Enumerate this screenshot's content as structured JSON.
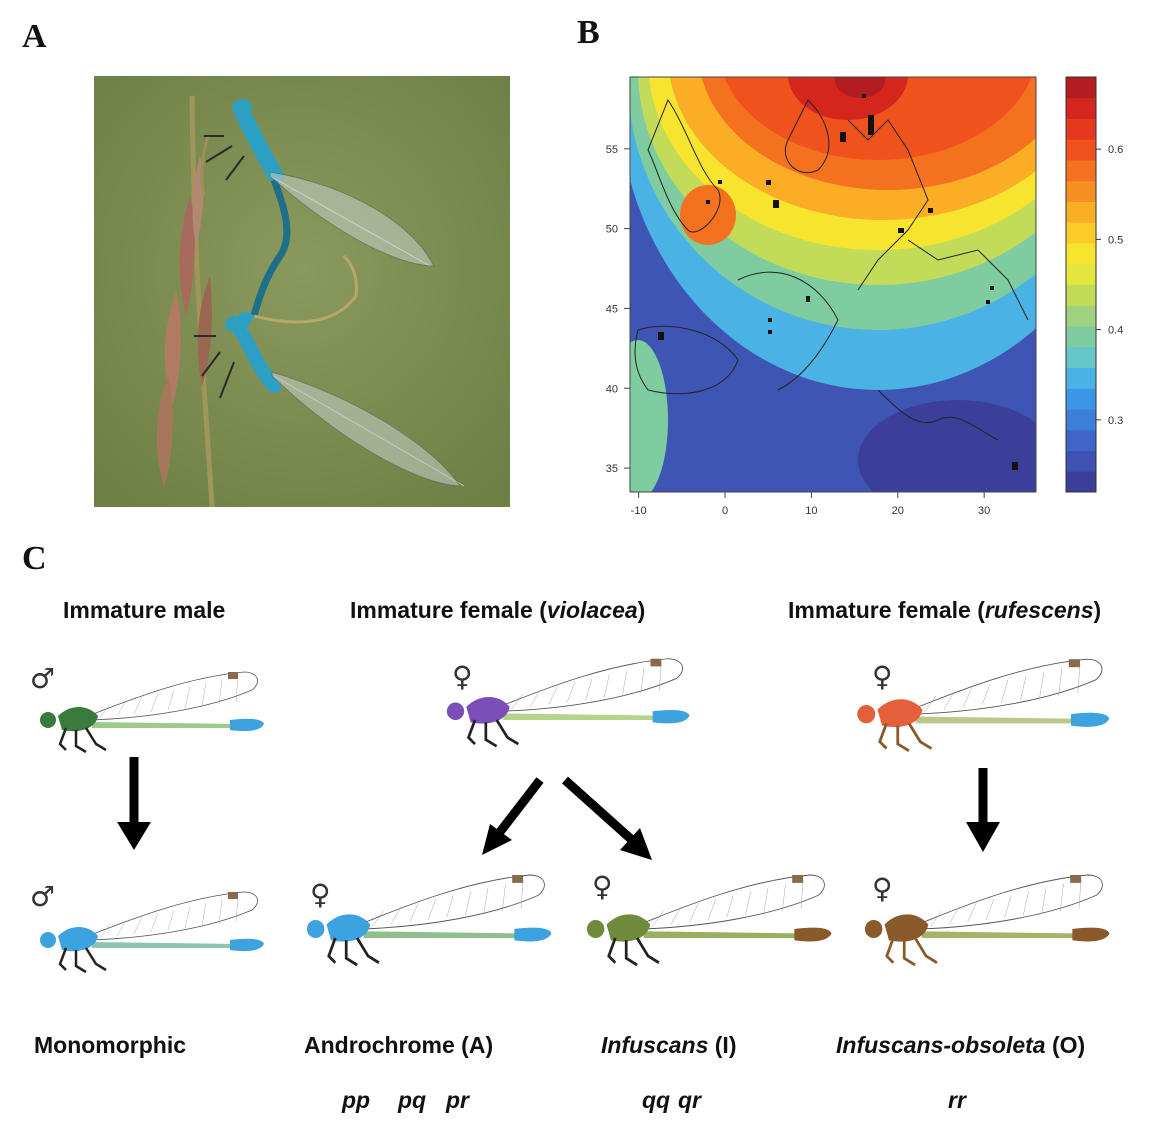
{
  "panels": {
    "a": "A",
    "b": "B",
    "c": "C"
  },
  "chart_data": {
    "type": "heatmap",
    "title": "",
    "xlabel": "",
    "ylabel": "",
    "xlim": [
      -11,
      36
    ],
    "ylim": [
      33.5,
      59.5
    ],
    "x_ticks": [
      -10,
      0,
      10,
      20,
      30
    ],
    "y_ticks": [
      35,
      40,
      45,
      50,
      55
    ],
    "colorbar": {
      "ticks": [
        "0.3",
        "0.4",
        "0.5",
        "0.6"
      ],
      "range": [
        0.22,
        0.68
      ],
      "colors": [
        "#3b3f9a",
        "#3f52b3",
        "#3f66c8",
        "#3b7fdb",
        "#3b97e6",
        "#4bb2e6",
        "#66c6c8",
        "#7fcca0",
        "#9fd27e",
        "#c2dc5a",
        "#e3e63d",
        "#f7e42e",
        "#fbcc28",
        "#fbad25",
        "#f79022",
        "#f4711f",
        "#ef521d",
        "#e5381c",
        "#d5261e",
        "#b31d21"
      ]
    },
    "grid": false,
    "legend": "right"
  },
  "c": {
    "titles": {
      "immature_male": "Immature male",
      "female_violacea_prefix": "Immature female (",
      "violacea": "violacea",
      "female_rufescens_prefix": "Immature female (",
      "rufescens": "rufescens",
      "close": ")"
    },
    "male_symbol": "♂",
    "female_symbol": "♀",
    "labels": {
      "monomorphic": "Monomorphic",
      "androchrome": "Androchrome (A)",
      "infuscans": "Infuscans",
      "infuscans_suffix": " (I)",
      "infuscans_obsoleta": "Infuscans-obsoleta",
      "obsoleta_suffix": " (O)"
    },
    "genotypes": {
      "androchrome": [
        "pp",
        "pq",
        "pr"
      ],
      "infuscans": [
        "qq",
        "qr"
      ],
      "obsoleta": [
        "rr"
      ]
    },
    "colors": {
      "blue": "#3ca2e0",
      "green_thorax": "#3a7a3c",
      "violet": "#7a4fb8",
      "orange": "#e5603a",
      "olive": "#6f8a3a",
      "brown": "#8a5a2a"
    }
  }
}
